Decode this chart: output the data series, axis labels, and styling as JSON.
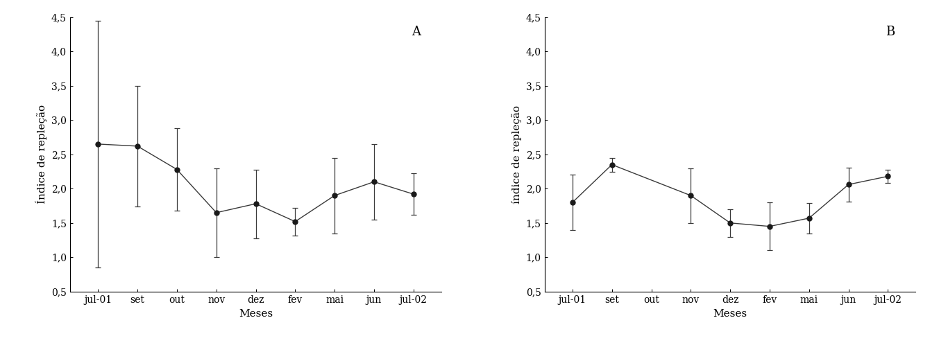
{
  "panel_A": {
    "label": "A",
    "x_labels": [
      "jul-01",
      "set",
      "out",
      "nov",
      "dez",
      "fev",
      "mai",
      "jun",
      "jul-02"
    ],
    "x_positions": [
      0,
      1,
      2,
      3,
      4,
      5,
      6,
      7,
      8
    ],
    "has_data": [
      true,
      true,
      true,
      true,
      true,
      true,
      true,
      true,
      true
    ],
    "means": [
      2.65,
      2.62,
      2.28,
      1.65,
      1.78,
      1.52,
      1.9,
      2.1,
      1.92
    ],
    "errors": [
      1.8,
      0.88,
      0.6,
      0.65,
      0.5,
      0.2,
      0.55,
      0.55,
      0.3
    ],
    "ylabel": "Índice de repleção",
    "xlabel": "Meses",
    "ylim": [
      0.5,
      4.5
    ],
    "yticks": [
      0.5,
      1.0,
      1.5,
      2.0,
      2.5,
      3.0,
      3.5,
      4.0,
      4.5
    ],
    "ytick_labels": [
      "0,5",
      "1,0",
      "1,5",
      "2,0",
      "2,5",
      "3,0",
      "3,5",
      "4,0",
      "4,5"
    ]
  },
  "panel_B": {
    "label": "B",
    "x_labels": [
      "jul-01",
      "set",
      "out",
      "nov",
      "dez",
      "fev",
      "mai",
      "jun",
      "jul-02"
    ],
    "x_positions": [
      0,
      1,
      2,
      3,
      4,
      5,
      6,
      7,
      8
    ],
    "has_data": [
      true,
      true,
      false,
      true,
      true,
      true,
      true,
      true,
      true
    ],
    "means": [
      1.8,
      2.35,
      null,
      1.9,
      1.5,
      1.45,
      1.57,
      2.06,
      2.18
    ],
    "errors": [
      0.4,
      0.1,
      null,
      0.4,
      0.2,
      0.35,
      0.22,
      0.25,
      0.1
    ],
    "ylabel": "índice de repleção",
    "xlabel": "Meses",
    "ylim": [
      0.5,
      4.5
    ],
    "yticks": [
      0.5,
      1.0,
      1.5,
      2.0,
      2.5,
      3.0,
      3.5,
      4.0,
      4.5
    ],
    "ytick_labels": [
      "0,5",
      "1,0",
      "1,5",
      "2,0",
      "2,5",
      "3,0",
      "3,5",
      "4,0",
      "4,5"
    ]
  },
  "line_color": "#3a3a3a",
  "marker_color": "#1a1a1a",
  "background_color": "#ffffff",
  "font_size_label": 11,
  "font_size_tick": 10,
  "font_size_panel_label": 13
}
